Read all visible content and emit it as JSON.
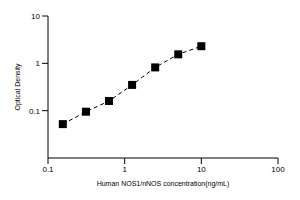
{
  "chart_data": {
    "type": "scatter",
    "x_label": "Human NOS1/nNOS concentration(ng/mL)",
    "y_label": "Optical Density",
    "x": [
      0.156,
      0.313,
      0.625,
      1.25,
      2.5,
      5,
      10
    ],
    "values": [
      0.052,
      0.095,
      0.16,
      0.35,
      0.82,
      1.55,
      2.3
    ],
    "log": true,
    "xlim": [
      0.1,
      100
    ],
    "xticks": [
      0.1,
      1,
      10,
      100
    ],
    "ylim": [
      0.01,
      10
    ],
    "yticks": [
      0.1,
      1,
      10
    ],
    "color": "#000000",
    "marker": "square",
    "line_style": "dashed"
  }
}
